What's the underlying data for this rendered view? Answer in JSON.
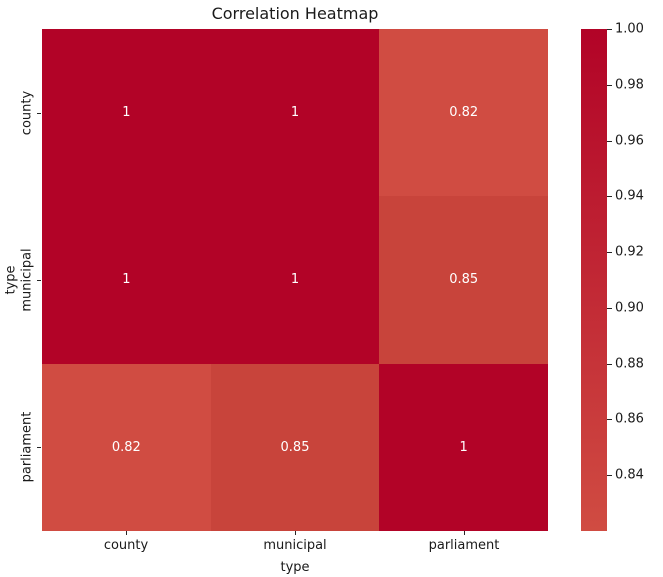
{
  "chart_data": {
    "type": "heatmap",
    "title": "Correlation Heatmap",
    "xlabel": "type",
    "ylabel": "type",
    "x_categories": [
      "county",
      "municipal",
      "parliament"
    ],
    "y_categories": [
      "county",
      "municipal",
      "parliament"
    ],
    "matrix": [
      [
        1,
        1,
        0.82
      ],
      [
        1,
        1,
        0.85
      ],
      [
        0.82,
        0.85,
        1
      ]
    ],
    "annotations": [
      [
        "1",
        "1",
        "0.82"
      ],
      [
        "1",
        "1",
        "0.85"
      ],
      [
        "0.82",
        "0.85",
        "1"
      ]
    ],
    "cell_colors": [
      [
        "#b20327",
        "#b20327",
        "#d04c42"
      ],
      [
        "#b20327",
        "#b20327",
        "#c8443b"
      ],
      [
        "#d04c42",
        "#c8443b",
        "#b20327"
      ]
    ],
    "annotation_color": "#ffffff",
    "grid": false,
    "legend_position": "right-colorbar",
    "colorbar": {
      "vmin": 0.82,
      "vmax": 1.0,
      "top_color": "#b20327",
      "bottom_color": "#d04c42",
      "tick_values": [
        1.0,
        0.98,
        0.96,
        0.94,
        0.92,
        0.9,
        0.88,
        0.86,
        0.84
      ],
      "tick_labels": [
        "1.00",
        "0.98",
        "0.96",
        "0.94",
        "0.92",
        "0.90",
        "0.88",
        "0.86",
        "0.84"
      ]
    }
  }
}
